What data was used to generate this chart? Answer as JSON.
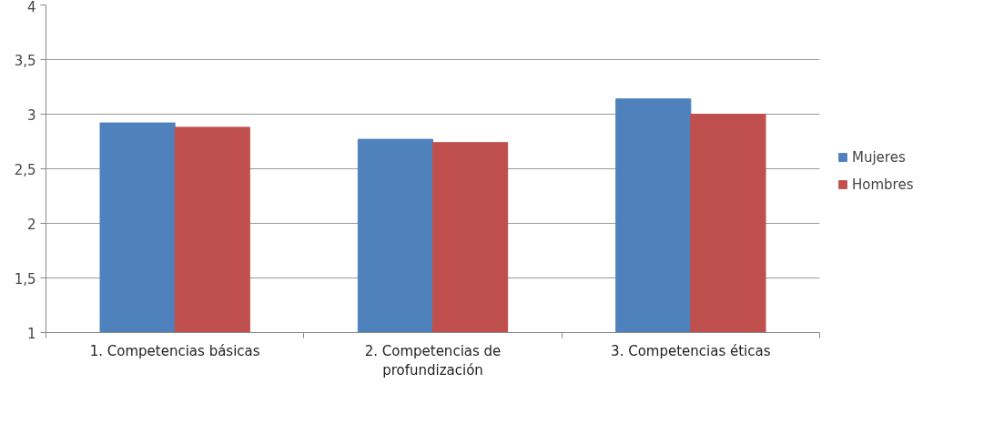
{
  "chart_data": {
    "type": "bar",
    "categories": [
      "1. Competencias básicas",
      "2. Competencias de profundización",
      "3. Competencias éticas"
    ],
    "series": [
      {
        "name": "Mujeres",
        "color": "#4f81bd",
        "values": [
          2.92,
          2.77,
          3.14
        ]
      },
      {
        "name": "Hombres",
        "color": "#c0504d",
        "values": [
          2.88,
          2.74,
          3.0
        ]
      }
    ],
    "ylim": [
      1,
      4
    ],
    "yticks": [
      {
        "value": 1,
        "label": "1"
      },
      {
        "value": 1.5,
        "label": "1,5"
      },
      {
        "value": 2,
        "label": "2"
      },
      {
        "value": 2.5,
        "label": "2,5"
      },
      {
        "value": 3,
        "label": "3"
      },
      {
        "value": 3.5,
        "label": "3,5"
      },
      {
        "value": 4,
        "label": "4"
      }
    ],
    "grid": "y",
    "legend": "right"
  }
}
